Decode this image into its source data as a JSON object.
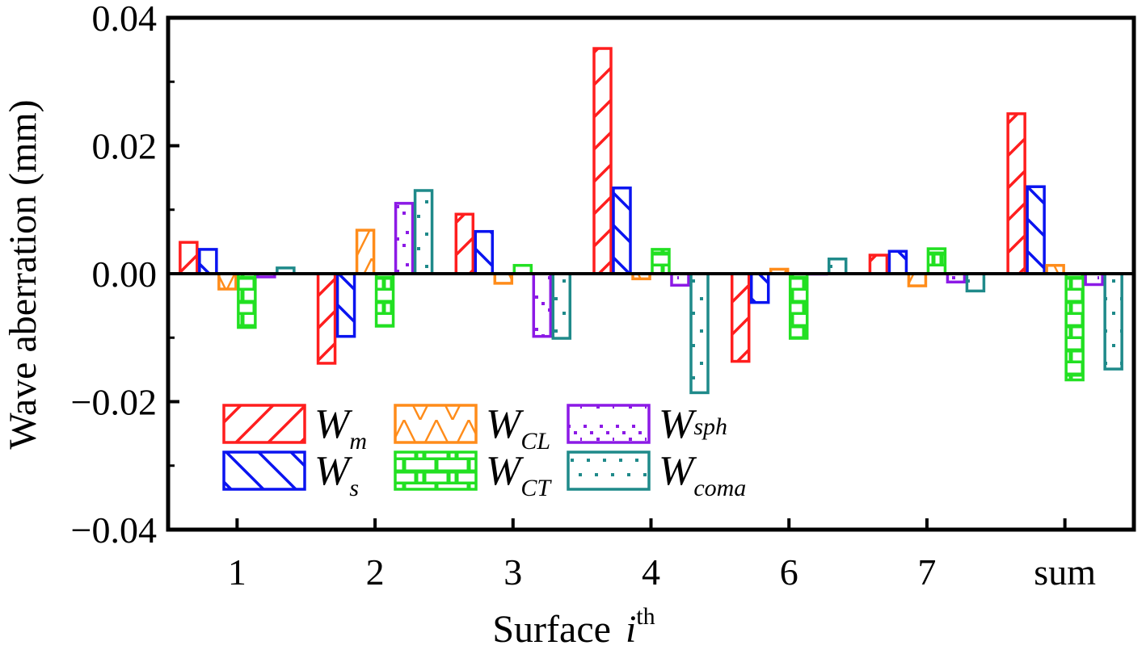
{
  "chart_data": {
    "type": "bar",
    "title": "",
    "xlabel": "Surface",
    "xlabel_var": "i",
    "xlabel_sup": "th",
    "ylabel": "Wave aberration (mm)",
    "ylim": [
      -0.04,
      0.04
    ],
    "yticks": [
      "0.04",
      "0.02",
      "0.00",
      "−0.02",
      "−0.04"
    ],
    "ytick_values": [
      0.04,
      0.02,
      0.0,
      -0.02,
      -0.04
    ],
    "categories": [
      "1",
      "2",
      "3",
      "4",
      "6",
      "7",
      "sum"
    ],
    "legend_position": "lower-left",
    "series": [
      {
        "name": "W",
        "sub": "m",
        "sup": "",
        "color": "#ff1e1e",
        "pattern": "diag-up",
        "values": [
          0.0049,
          -0.014,
          0.0093,
          0.0352,
          -0.0137,
          0.0029,
          0.025
        ]
      },
      {
        "name": "W",
        "sub": "s",
        "sup": "",
        "color": "#0a14f0",
        "pattern": "diag-down",
        "values": [
          0.0038,
          -0.0098,
          0.0066,
          0.0134,
          -0.0045,
          0.0035,
          0.0136
        ]
      },
      {
        "name": "W",
        "sub": "CL",
        "sup": "",
        "color": "#ff8c1a",
        "pattern": "cross",
        "values": [
          -0.0024,
          0.0068,
          -0.0015,
          -0.0008,
          0.0007,
          -0.0019,
          0.0013
        ]
      },
      {
        "name": "W",
        "sub": "CT",
        "sup": "",
        "color": "#22e022",
        "pattern": "brick",
        "values": [
          -0.0084,
          -0.0082,
          0.0013,
          0.0038,
          -0.0101,
          0.0039,
          -0.0166
        ]
      },
      {
        "name": "W",
        "sub": "",
        "sup": "sph",
        "color": "#8c1ae6",
        "pattern": "dots-diag",
        "values": [
          -0.0005,
          0.011,
          -0.0098,
          -0.0018,
          0.0,
          -0.0013,
          -0.0017
        ]
      },
      {
        "name": "W",
        "sub": "coma",
        "sup": "",
        "color": "#1f8a8a",
        "pattern": "dots",
        "values": [
          0.0009,
          0.013,
          -0.0101,
          -0.0186,
          0.0023,
          -0.0027,
          -0.0149
        ]
      }
    ]
  }
}
